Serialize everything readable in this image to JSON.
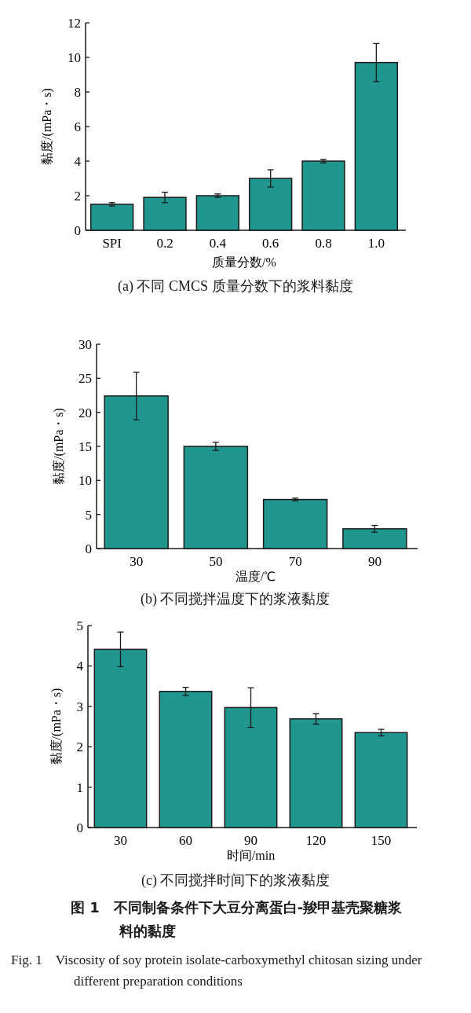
{
  "chart_data": [
    {
      "type": "bar",
      "categories": [
        "SPI",
        "0.2",
        "0.4",
        "0.6",
        "0.8",
        "1.0"
      ],
      "values": [
        1.5,
        1.9,
        2.0,
        3.0,
        4.0,
        9.7
      ],
      "errors": [
        0.1,
        0.3,
        0.1,
        0.5,
        0.1,
        1.1
      ],
      "color": "#20968f",
      "ylim": [
        0,
        12
      ],
      "yticks": [
        0,
        2,
        4,
        6,
        8,
        10,
        12
      ],
      "xlabel": "质量分数/%",
      "ylabel": "黏度/(mPa・s)",
      "annotations": [
        "(a) 不同 CMCS 质量分数下的浆料黏度"
      ]
    },
    {
      "type": "bar",
      "categories": [
        "30",
        "50",
        "70",
        "90"
      ],
      "values": [
        22.4,
        15.0,
        7.2,
        2.9
      ],
      "errors": [
        3.5,
        0.6,
        0.2,
        0.5
      ],
      "color": "#20968f",
      "ylim": [
        0,
        30
      ],
      "yticks": [
        0,
        5,
        10,
        15,
        20,
        25,
        30
      ],
      "xlabel": "温度/℃",
      "ylabel": "黏度/(mPa・s)",
      "annotations": [
        "(b) 不同搅拌温度下的浆液黏度"
      ]
    },
    {
      "type": "bar",
      "categories": [
        "30",
        "60",
        "90",
        "120",
        "150"
      ],
      "values": [
        4.41,
        3.37,
        2.97,
        2.69,
        2.35
      ],
      "errors": [
        0.43,
        0.1,
        0.49,
        0.13,
        0.08
      ],
      "color": "#20968f",
      "ylim": [
        0,
        5
      ],
      "yticks": [
        0,
        1,
        2,
        3,
        4,
        5
      ],
      "xlabel": "时间/min",
      "ylabel": "黏度/(mPa・s)",
      "annotations": [
        "(c) 不同搅拌时间下的浆液黏度",
        "图 1　不同制备条件下大豆分离蛋白-羧甲基壳聚糖浆料的黏度",
        "Fig. 1　Viscosity of soy protein isolate-carboxymethyl chitosan sizing under different preparation conditions"
      ]
    }
  ]
}
